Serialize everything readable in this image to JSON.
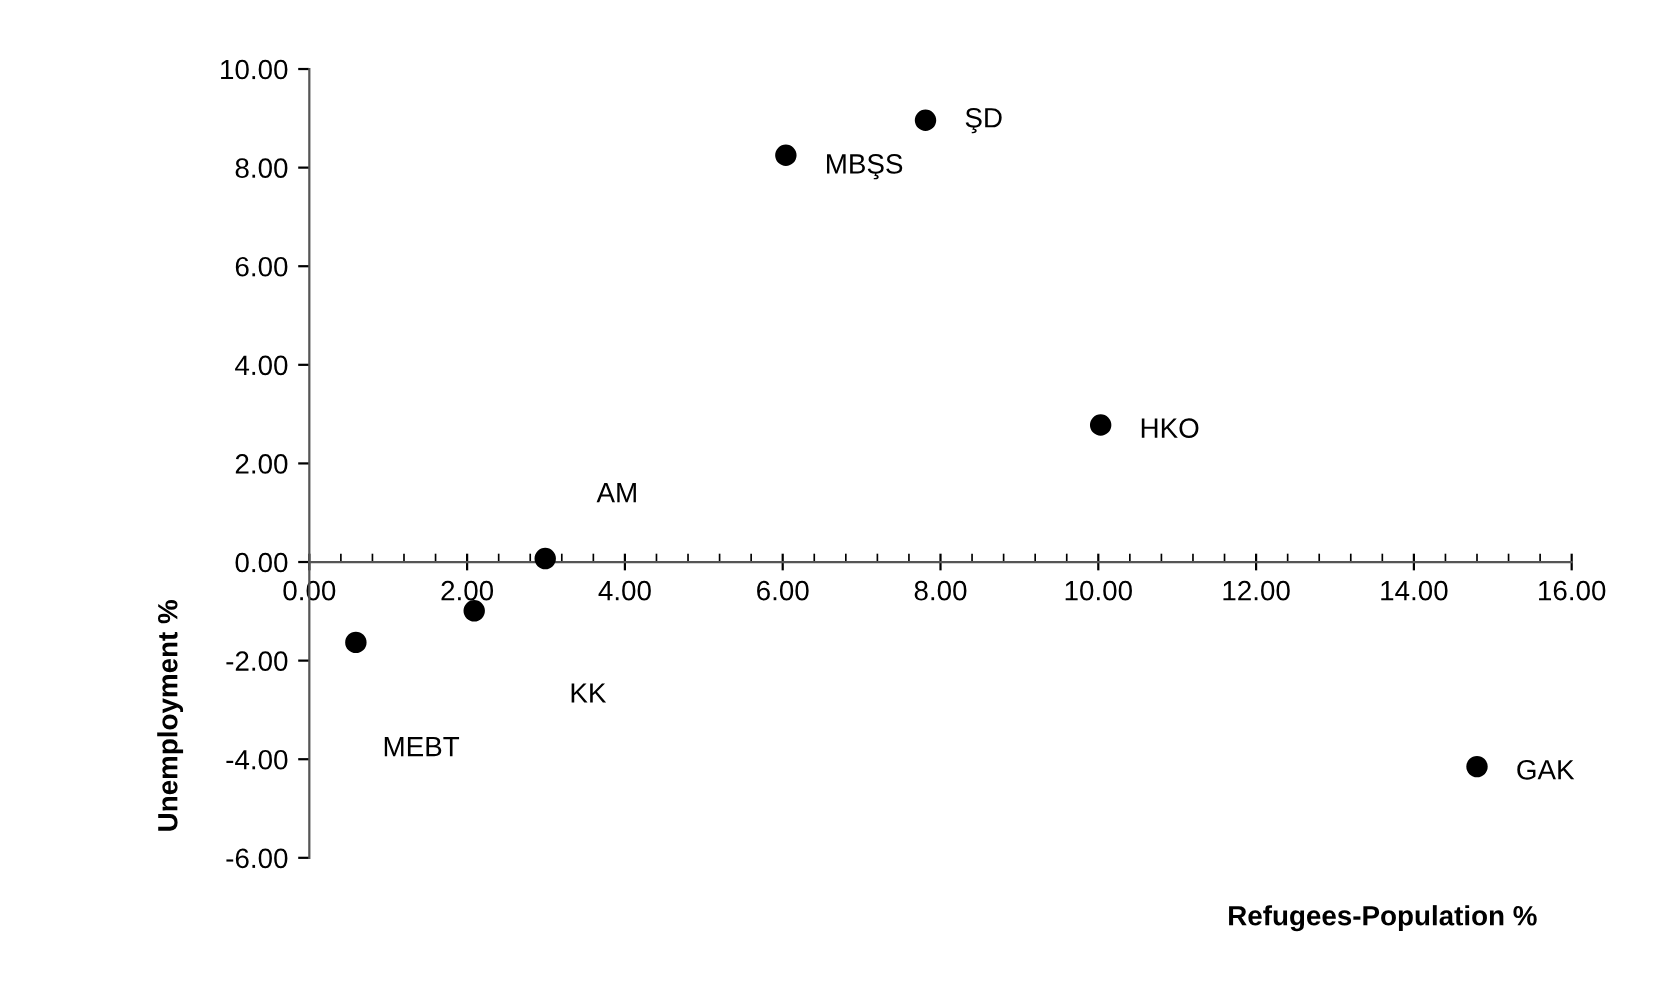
{
  "chart_data": {
    "type": "scatter",
    "xlabel": "Refugees-Population %",
    "ylabel": "Unemployment %",
    "x": [
      0.59,
      2.09,
      2.99,
      6.04,
      7.81,
      10.03,
      14.8
    ],
    "series": [
      {
        "color": "#000000",
        "values": [
          -1.63,
          -0.99,
          0.07,
          8.25,
          8.96,
          2.78,
          -4.15
        ]
      }
    ],
    "annotations": [
      "MEBT",
      "KK",
      "AM",
      {
        "text": "MBŞS",
        "x": 6.04,
        "y": 8.25
      },
      {
        "text": "ŞD",
        "x": 7.81,
        "y": 8.96
      },
      {
        "text": "HKO",
        "x": 10.03,
        "y": 2.78
      },
      {
        "text": "GAK",
        "x": 14.8,
        "y": -4.15
      }
    ],
    "xlim": [
      0,
      16
    ],
    "ylim": [
      -6,
      10
    ],
    "xticks": [
      {
        "value": 0,
        "label": "0.00"
      },
      {
        "value": 2,
        "label": "2.00"
      },
      {
        "value": 4,
        "label": "4.00"
      },
      {
        "value": 6,
        "label": "6.00"
      },
      {
        "value": 8,
        "label": "8.00"
      },
      {
        "value": 10,
        "label": "10.00"
      },
      {
        "value": 12,
        "label": "12.00"
      },
      {
        "value": 14,
        "label": "14.00"
      },
      {
        "value": 16,
        "label": "16.00"
      }
    ],
    "yticks": [
      {
        "value": -6,
        "label": "-6.00"
      },
      {
        "value": -4,
        "label": "-4.00"
      },
      {
        "value": -2,
        "label": "-2.00"
      },
      {
        "value": 0,
        "label": "0.00"
      },
      {
        "value": 2,
        "label": "2.00"
      },
      {
        "value": 4,
        "label": "4.00"
      },
      {
        "value": 6,
        "label": "6.00"
      },
      {
        "value": 8,
        "label": "8.00"
      },
      {
        "value": 10,
        "label": "10.00"
      }
    ],
    "marker": "circle",
    "grid": false,
    "legend": false
  }
}
